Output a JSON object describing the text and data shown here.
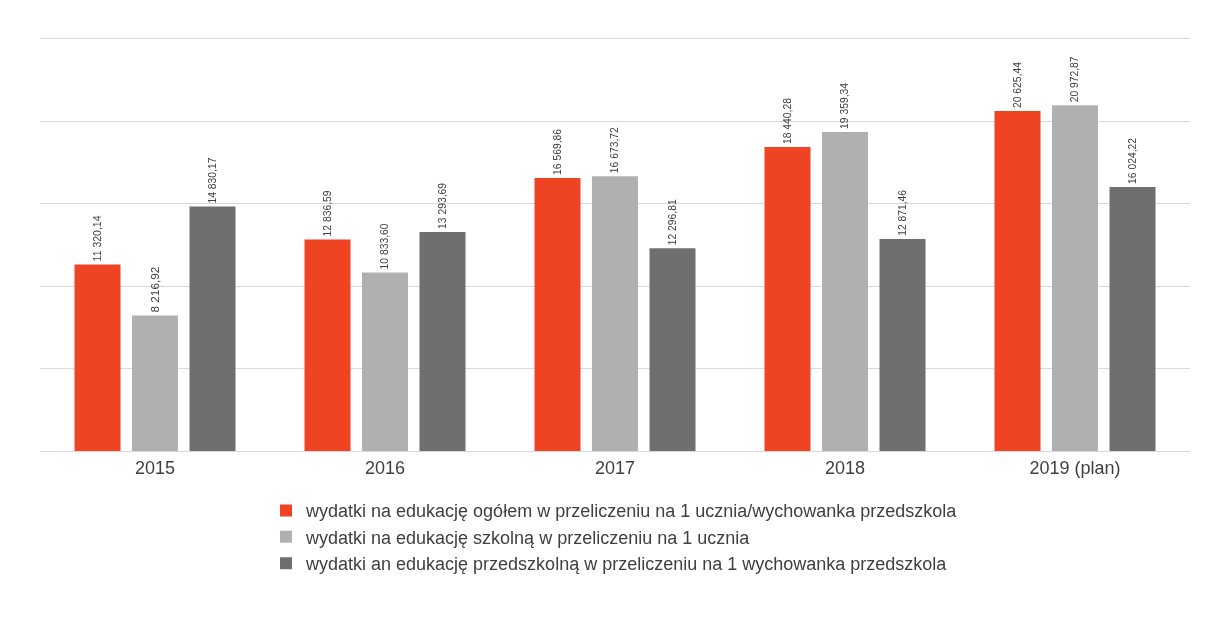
{
  "chart_data": {
    "type": "bar",
    "categories": [
      "2015",
      "2016",
      "2017",
      "2018",
      "2019 (plan)"
    ],
    "series": [
      {
        "name": "wydatki na edukację ogółem w przeliczeniu na 1 ucznia/wychowanka przedszkola",
        "color": "#ee4423",
        "values": [
          11320.14,
          12836.59,
          16569.86,
          18440.28,
          20625.44
        ],
        "value_labels": [
          "11 320,14",
          "12 836,59",
          "16 569,86",
          "18 440,28",
          "20 625,44"
        ]
      },
      {
        "name": "wydatki na edukację szkolną w przeliczeniu na 1 ucznia",
        "color": "#b0b0b0",
        "values": [
          8216.92,
          10833.6,
          16673.72,
          19359.34,
          20972.87
        ],
        "value_labels": [
          "8 216,92",
          "10 833,60",
          "16 673,72",
          "19 359,34",
          "20 972,87"
        ]
      },
      {
        "name": "wydatki an edukację przedszkolną w przeliczeniu na 1 wychowanka przedszkola",
        "color": "#6f6f6f",
        "values": [
          14830.17,
          13293.69,
          12296.81,
          12871.46,
          16024.22
        ],
        "value_labels": [
          "14 830,17",
          "13 293,69",
          "12 296,81",
          "12 871,46",
          "16 024,22"
        ]
      }
    ],
    "ylim": [
      0,
      25000
    ],
    "yticks": [
      {
        "value": 0,
        "label": null
      },
      {
        "value": 5000,
        "label": null
      },
      {
        "value": 10000,
        "label": null
      },
      {
        "value": 15000,
        "label": null
      },
      {
        "value": 20000,
        "label": null
      },
      {
        "value": 25000,
        "label": null
      }
    ],
    "grid": "y",
    "legend": "bottom",
    "tick_labels": "x"
  }
}
